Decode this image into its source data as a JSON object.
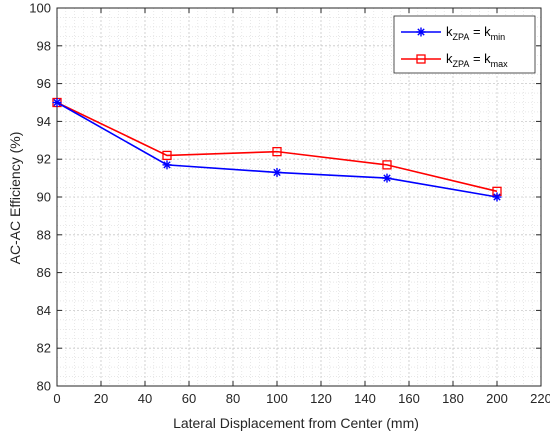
{
  "chart_data": {
    "type": "line",
    "title": "",
    "xlabel": "Lateral Displacement from Center (mm)",
    "ylabel": "AC-AC Efficiency (%)",
    "xlim": [
      0,
      220
    ],
    "ylim": [
      80,
      100
    ],
    "xticks": [
      "0",
      "20",
      "40",
      "60",
      "80",
      "100",
      "120",
      "140",
      "160",
      "180",
      "200",
      "220"
    ],
    "yticks": [
      "80",
      "82",
      "84",
      "86",
      "88",
      "90",
      "92",
      "94",
      "96",
      "98",
      "100"
    ],
    "grid": "major and minor dotted",
    "legend_position": "top-right",
    "x": [
      0,
      50,
      100,
      150,
      200
    ],
    "series": [
      {
        "name": "kZPA = kmin",
        "label_main": "k",
        "label_sub1": "ZPA",
        "label_mid": " = k",
        "label_sub2": "min",
        "values": [
          95.0,
          91.7,
          91.3,
          91.0,
          90.0
        ],
        "color": "#0000ff",
        "marker": "asterisk"
      },
      {
        "name": "kZPA = kmax",
        "label_main": "k",
        "label_sub1": "ZPA",
        "label_mid": " = k",
        "label_sub2": "max",
        "values": [
          95.0,
          92.2,
          92.4,
          91.7,
          90.3
        ],
        "color": "#ff0000",
        "marker": "square"
      }
    ]
  }
}
